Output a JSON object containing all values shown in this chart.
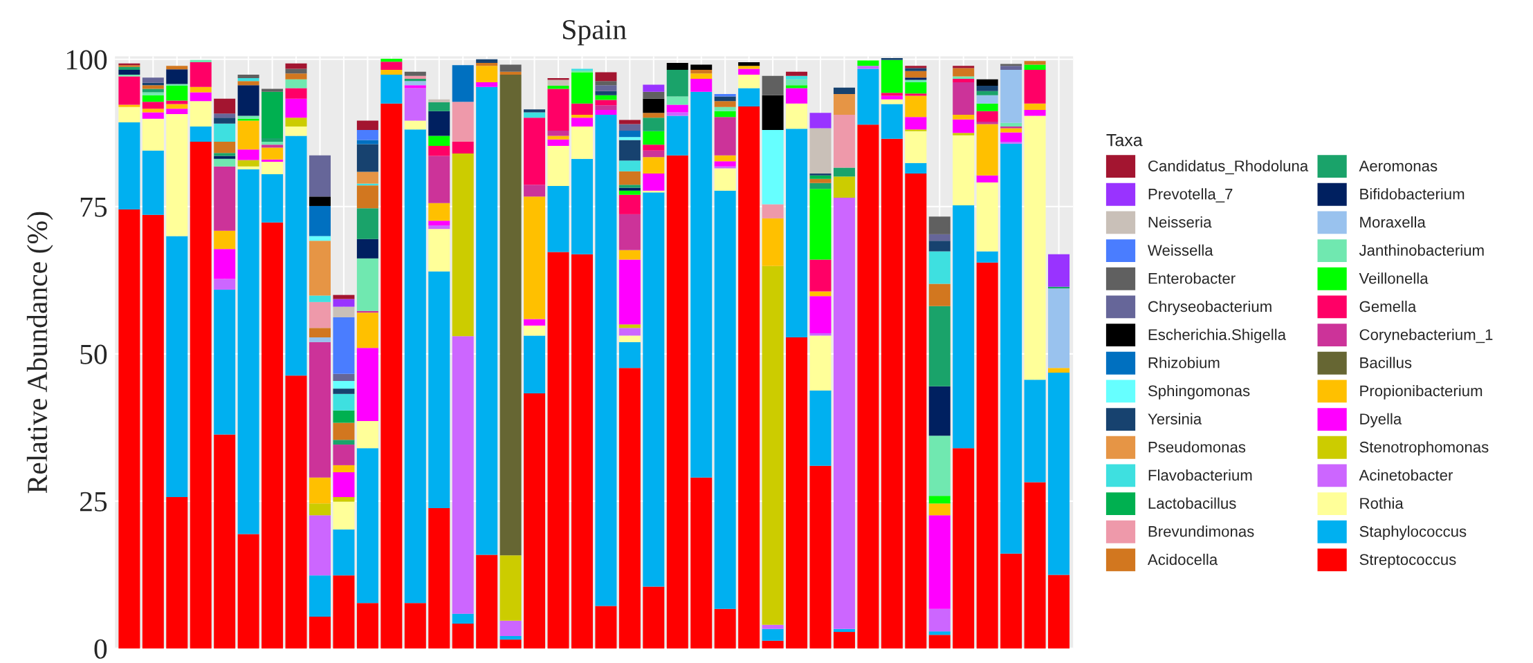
{
  "chart_data": {
    "type": "bar",
    "stacked": true,
    "title": "Spain",
    "ylabel": "Relative Abundance (%)",
    "legend_title": "Taxa",
    "legend": "right",
    "grid": true,
    "tick_labels": "y",
    "ylim": [
      0,
      100.5
    ],
    "yticks": [
      0,
      25,
      50,
      75,
      100
    ],
    "categories": [
      null,
      null,
      null,
      null,
      null,
      null,
      null,
      null,
      null,
      null,
      null,
      null,
      null,
      null,
      null,
      null,
      null,
      null,
      null,
      null,
      null,
      null,
      null,
      null,
      null,
      null,
      null,
      null,
      null,
      null,
      null,
      null,
      null,
      null,
      null,
      null,
      null,
      null,
      null,
      null
    ],
    "series": [
      {
        "name": "Streptococcus",
        "color": "#ff0000",
        "values": [
          74.5,
          73.6,
          25.7,
          86.0,
          36.3,
          19.4,
          72.3,
          46.3,
          5.4,
          12.4,
          7.7,
          92.5,
          7.7,
          23.8,
          4.2,
          15.9,
          1.5,
          43.3,
          67.3,
          66.9,
          7.2,
          47.6,
          10.5,
          83.7,
          29.0,
          6.7,
          92.0,
          1.3,
          52.8,
          31.0,
          2.8,
          88.9,
          86.5,
          80.6,
          2.3,
          34.0,
          65.5,
          16.1,
          28.2,
          12.5
        ]
      },
      {
        "name": "Staphylococcus",
        "color": "#00b0f0",
        "values": [
          14.8,
          10.9,
          44.3,
          2.6,
          24.6,
          61.9,
          8.2,
          40.7,
          7.0,
          7.8,
          26.3,
          4.9,
          80.4,
          40.2,
          1.7,
          79.4,
          0.6,
          9.8,
          11.2,
          16.2,
          83.4,
          4.4,
          66.9,
          6.7,
          65.5,
          71.0,
          3.1,
          2.0,
          35.4,
          12.8,
          0.5,
          9.5,
          5.9,
          1.8,
          0.6,
          41.2,
          1.9,
          69.6,
          17.4,
          34.3
        ]
      },
      {
        "name": "Rothia",
        "color": "#ffff99",
        "values": [
          2.6,
          5.4,
          20.7,
          4.3,
          null,
          0.5,
          2.1,
          1.6,
          null,
          4.7,
          4.6,
          null,
          1.5,
          7.2,
          null,
          null,
          null,
          1.7,
          6.8,
          5.5,
          null,
          1.1,
          0.3,
          null,
          null,
          3.8,
          2.3,
          null,
          4.3,
          9.3,
          null,
          null,
          0.8,
          5.4,
          null,
          11.9,
          11.7,
          null,
          44.8,
          null
        ]
      },
      {
        "name": "Acinetobacter",
        "color": "#cc66ff",
        "values": [
          null,
          null,
          null,
          null,
          1.8,
          null,
          null,
          null,
          10.2,
          null,
          null,
          null,
          5.5,
          0.6,
          47.1,
          null,
          2.6,
          null,
          null,
          null,
          null,
          1.3,
          null,
          0.6,
          null,
          0.3,
          null,
          0.7,
          null,
          0.4,
          73.2,
          0.5,
          null,
          null,
          3.8,
          null,
          null,
          0.3,
          null,
          null
        ]
      },
      {
        "name": "Stenotrophomonas",
        "color": "#cccc00",
        "values": [
          null,
          null,
          null,
          null,
          null,
          1.1,
          null,
          1.5,
          2.0,
          0.8,
          null,
          null,
          null,
          null,
          31.0,
          null,
          11.1,
          null,
          null,
          null,
          null,
          0.6,
          null,
          null,
          null,
          null,
          null,
          60.9,
          null,
          null,
          3.6,
          null,
          null,
          0.3,
          null,
          0.4,
          null,
          null,
          null,
          null
        ]
      },
      {
        "name": "Dyella",
        "color": "#ff00ff",
        "values": [
          null,
          1.1,
          0.9,
          1.5,
          5.1,
          1.8,
          0.4,
          3.2,
          null,
          4.2,
          12.4,
          null,
          0.5,
          0.8,
          null,
          0.8,
          null,
          1.1,
          1.1,
          1.5,
          0.8,
          11.0,
          2.9,
          1.3,
          2.2,
          0.9,
          1.0,
          null,
          2.6,
          6.3,
          null,
          null,
          0.6,
          2.1,
          15.9,
          2.3,
          1.2,
          1.6,
          1.0,
          null
        ]
      },
      {
        "name": "Propionibacterium",
        "color": "#ffc000",
        "values": [
          0.4,
          0.6,
          0.8,
          0.9,
          3.1,
          4.9,
          2.0,
          null,
          4.4,
          1.2,
          6.0,
          0.8,
          null,
          3.0,
          null,
          2.8,
          null,
          20.8,
          0.6,
          0.5,
          null,
          1.6,
          2.8,
          null,
          0.9,
          1.0,
          0.5,
          8.1,
          null,
          0.8,
          null,
          null,
          null,
          3.6,
          2.0,
          0.8,
          8.7,
          0.7,
          1.1,
          0.8
        ]
      },
      {
        "name": "Bacillus",
        "color": "#666633",
        "values": [
          null,
          null,
          null,
          null,
          null,
          null,
          null,
          null,
          null,
          null,
          null,
          null,
          null,
          null,
          null,
          null,
          81.6,
          null,
          null,
          null,
          null,
          null,
          null,
          null,
          null,
          null,
          null,
          null,
          null,
          null,
          null,
          null,
          null,
          null,
          null,
          null,
          null,
          null,
          null,
          null
        ]
      },
      {
        "name": "Corynebacterium_1",
        "color": "#cc3399",
        "values": [
          null,
          null,
          null,
          null,
          10.9,
          null,
          0.5,
          null,
          23.0,
          3.5,
          0.3,
          null,
          null,
          8.0,
          null,
          null,
          null,
          2.0,
          0.9,
          null,
          0.8,
          6.1,
          1.1,
          null,
          null,
          6.5,
          null,
          null,
          null,
          null,
          null,
          null,
          null,
          null,
          null,
          5.5,
          0.4,
          0.3,
          null,
          null
        ]
      },
      {
        "name": "Gemella",
        "color": "#ff0066",
        "values": [
          4.8,
          1.2,
          0.6,
          4.2,
          null,
          null,
          null,
          1.8,
          null,
          null,
          null,
          1.4,
          null,
          1.7,
          2.0,
          null,
          null,
          11.4,
          7.1,
          1.9,
          0.9,
          3.3,
          1.0,
          null,
          null,
          null,
          null,
          null,
          null,
          5.4,
          null,
          null,
          0.5,
          0.4,
          null,
          0.6,
          1.8,
          null,
          5.7,
          null
        ]
      },
      {
        "name": "Veillonella",
        "color": "#00ff00",
        "values": [
          null,
          1.1,
          2.5,
          null,
          null,
          0.3,
          null,
          null,
          null,
          null,
          null,
          0.5,
          null,
          1.7,
          null,
          null,
          null,
          null,
          0.5,
          5.3,
          0.8,
          0.7,
          2.3,
          null,
          null,
          1.0,
          null,
          null,
          0.5,
          12.0,
          null,
          0.9,
          5.6,
          1.9,
          1.3,
          null,
          1.3,
          null,
          0.9,
          null
        ]
      },
      {
        "name": "Janthinobacterium",
        "color": "#70e8b0",
        "values": [
          0.3,
          0.5,
          0.3,
          0.4,
          1.3,
          0.5,
          0.5,
          1.5,
          null,
          null,
          8.9,
          null,
          null,
          null,
          null,
          null,
          null,
          null,
          null,
          0.3,
          null,
          null,
          null,
          1.4,
          null,
          0.7,
          null,
          null,
          1.0,
          null,
          null,
          null,
          null,
          0.4,
          10.2,
          0.4,
          null,
          0.6,
          null,
          null
        ]
      },
      {
        "name": "Moraxella",
        "color": "#99c2ee",
        "values": [
          null,
          null,
          null,
          null,
          null,
          null,
          null,
          null,
          0.8,
          null,
          null,
          null,
          0.7,
          null,
          null,
          null,
          null,
          null,
          null,
          null,
          null,
          null,
          null,
          null,
          null,
          null,
          null,
          null,
          null,
          null,
          null,
          null,
          null,
          null,
          null,
          null,
          1.4,
          9.0,
          null,
          13.5
        ]
      },
      {
        "name": "Bifidobacterium",
        "color": "#002060",
        "values": [
          0.8,
          null,
          2.5,
          null,
          0.5,
          5.2,
          null,
          null,
          null,
          null,
          3.3,
          null,
          null,
          4.2,
          null,
          null,
          null,
          null,
          null,
          null,
          null,
          0.5,
          null,
          null,
          null,
          null,
          null,
          null,
          null,
          null,
          null,
          null,
          null,
          0.4,
          8.4,
          null,
          null,
          null,
          null,
          null
        ]
      },
      {
        "name": "Aeromonas",
        "color": "#1aa36a",
        "values": [
          0.5,
          0.6,
          null,
          null,
          0.5,
          null,
          0.6,
          null,
          null,
          0.8,
          5.2,
          null,
          0.4,
          1.5,
          null,
          null,
          null,
          null,
          null,
          null,
          null,
          0.5,
          2.3,
          4.5,
          null,
          null,
          null,
          null,
          null,
          1.0,
          1.5,
          null,
          null,
          null,
          13.6,
          null,
          0.7,
          null,
          null,
          0.3
        ]
      },
      {
        "name": "Acidocella",
        "color": "#d2771f",
        "values": [
          0.3,
          0.6,
          0.6,
          null,
          1.9,
          0.7,
          null,
          1.0,
          1.6,
          2.9,
          3.9,
          null,
          null,
          null,
          null,
          0.5,
          0.5,
          null,
          null,
          null,
          null,
          2.3,
          0.8,
          null,
          0.6,
          1.0,
          null,
          null,
          null,
          0.7,
          null,
          null,
          null,
          1.1,
          3.8,
          1.4,
          null,
          null,
          0.6,
          null
        ]
      },
      {
        "name": "Brevundimonas",
        "color": "#ee99aa",
        "values": [
          null,
          null,
          null,
          null,
          null,
          null,
          null,
          null,
          4.4,
          null,
          null,
          null,
          0.5,
          null,
          6.8,
          null,
          null,
          null,
          null,
          null,
          null,
          null,
          null,
          null,
          null,
          null,
          null,
          2.4,
          null,
          null,
          9.0,
          null,
          null,
          null,
          null,
          null,
          null,
          null,
          null,
          null
        ]
      },
      {
        "name": "Lactobacillus",
        "color": "#00b050",
        "values": [
          null,
          null,
          null,
          null,
          null,
          null,
          7.9,
          null,
          null,
          2.1,
          null,
          null,
          null,
          null,
          null,
          null,
          null,
          null,
          null,
          null,
          null,
          null,
          null,
          null,
          null,
          null,
          null,
          null,
          null,
          0.6,
          null,
          null,
          null,
          null,
          null,
          null,
          null,
          null,
          null,
          null
        ]
      },
      {
        "name": "Flavobacterium",
        "color": "#3ee0e0",
        "values": [
          null,
          null,
          null,
          null,
          3.1,
          0.5,
          null,
          null,
          1.1,
          2.8,
          0.3,
          null,
          null,
          null,
          null,
          null,
          null,
          0.9,
          null,
          0.3,
          null,
          1.8,
          null,
          null,
          null,
          null,
          null,
          null,
          0.6,
          null,
          null,
          null,
          null,
          null,
          5.5,
          null,
          null,
          null,
          null,
          null
        ]
      },
      {
        "name": "Pseudomonas",
        "color": "#e69545",
        "values": [
          null,
          null,
          null,
          null,
          null,
          null,
          null,
          null,
          9.3,
          null,
          2.0,
          null,
          null,
          null,
          null,
          null,
          null,
          null,
          null,
          null,
          null,
          null,
          null,
          null,
          null,
          null,
          null,
          null,
          null,
          null,
          3.5,
          null,
          null,
          null,
          null,
          null,
          null,
          null,
          null,
          null
        ]
      },
      {
        "name": "Yersinia",
        "color": "#17426f",
        "values": [
          null,
          0.4,
          null,
          null,
          1.0,
          null,
          null,
          null,
          null,
          0.9,
          4.7,
          null,
          null,
          null,
          null,
          0.6,
          null,
          0.5,
          null,
          null,
          0.7,
          3.5,
          null,
          null,
          null,
          0.8,
          null,
          null,
          null,
          0.3,
          1.1,
          null,
          0.3,
          0.5,
          1.8,
          null,
          0.9,
          null,
          null,
          null
        ]
      },
      {
        "name": "Sphingomonas",
        "color": "#66ffff",
        "values": [
          null,
          null,
          null,
          null,
          null,
          null,
          null,
          null,
          0.8,
          1.3,
          null,
          null,
          null,
          null,
          null,
          null,
          null,
          null,
          null,
          null,
          null,
          0.5,
          null,
          null,
          null,
          null,
          null,
          12.6,
          null,
          null,
          null,
          null,
          null,
          null,
          null,
          null,
          null,
          null,
          null,
          null
        ]
      },
      {
        "name": "Rhizobium",
        "color": "#0070c0",
        "values": [
          null,
          null,
          null,
          null,
          null,
          null,
          null,
          null,
          5.1,
          null,
          0.7,
          null,
          null,
          null,
          6.2,
          null,
          null,
          null,
          null,
          null,
          null,
          1.1,
          null,
          null,
          null,
          null,
          null,
          null,
          null,
          null,
          null,
          null,
          null,
          null,
          null,
          null,
          null,
          null,
          null,
          null
        ]
      },
      {
        "name": "Escherichia.Shigella",
        "color": "#000000",
        "values": [
          null,
          null,
          null,
          null,
          null,
          null,
          null,
          null,
          1.6,
          null,
          null,
          null,
          null,
          null,
          null,
          null,
          null,
          null,
          null,
          null,
          null,
          null,
          2.4,
          1.2,
          0.9,
          null,
          0.6,
          5.9,
          null,
          null,
          null,
          null,
          null,
          null,
          null,
          null,
          1.1,
          null,
          null,
          null
        ]
      },
      {
        "name": "Chryseobacterium",
        "color": "#666699",
        "values": [
          null,
          0.9,
          null,
          null,
          0.7,
          null,
          null,
          null,
          7.0,
          1.2,
          null,
          null,
          null,
          null,
          null,
          null,
          null,
          null,
          null,
          null,
          1.0,
          1.1,
          null,
          null,
          null,
          null,
          null,
          null,
          null,
          null,
          null,
          null,
          null,
          null,
          1.1,
          null,
          null,
          0.7,
          null,
          null
        ]
      },
      {
        "name": "Enterobacter",
        "color": "#606060",
        "values": [
          null,
          null,
          null,
          null,
          null,
          0.6,
          0.5,
          0.8,
          null,
          null,
          null,
          null,
          0.7,
          null,
          null,
          null,
          1.2,
          null,
          null,
          null,
          0.7,
          null,
          1.2,
          null,
          null,
          null,
          null,
          3.3,
          null,
          null,
          null,
          null,
          null,
          null,
          3.0,
          null,
          null,
          0.3,
          null,
          null
        ]
      },
      {
        "name": "Weissella",
        "color": "#4a7dff",
        "values": [
          null,
          null,
          null,
          null,
          null,
          null,
          null,
          null,
          null,
          9.6,
          1.7,
          null,
          null,
          null,
          null,
          null,
          null,
          null,
          null,
          null,
          null,
          null,
          null,
          null,
          null,
          0.4,
          null,
          null,
          null,
          null,
          null,
          null,
          null,
          null,
          null,
          null,
          null,
          null,
          null,
          null
        ]
      },
      {
        "name": "Neisseria",
        "color": "#c9c0b8",
        "values": [
          null,
          null,
          null,
          null,
          null,
          null,
          null,
          null,
          null,
          1.8,
          null,
          null,
          null,
          0.5,
          null,
          null,
          null,
          null,
          1.0,
          null,
          null,
          null,
          null,
          null,
          null,
          null,
          null,
          null,
          null,
          7.7,
          null,
          null,
          null,
          null,
          null,
          null,
          null,
          null,
          null,
          null
        ]
      },
      {
        "name": "Prevotella_7",
        "color": "#9933ff",
        "values": [
          null,
          null,
          null,
          null,
          null,
          null,
          null,
          null,
          null,
          1.3,
          null,
          null,
          null,
          null,
          null,
          null,
          null,
          null,
          null,
          null,
          null,
          null,
          1.2,
          null,
          null,
          null,
          null,
          null,
          null,
          2.6,
          null,
          null,
          null,
          null,
          null,
          null,
          null,
          null,
          null,
          5.5
        ]
      },
      {
        "name": "Candidatus_Rhodoluna",
        "color": "#a31530",
        "values": [
          0.3,
          null,
          null,
          null,
          2.5,
          null,
          null,
          0.9,
          null,
          0.7,
          1.6,
          null,
          null,
          null,
          null,
          null,
          null,
          null,
          0.3,
          null,
          1.5,
          0.7,
          null,
          null,
          null,
          null,
          null,
          null,
          0.7,
          null,
          null,
          null,
          null,
          0.4,
          null,
          0.4,
          null,
          null,
          null,
          null
        ]
      }
    ]
  }
}
